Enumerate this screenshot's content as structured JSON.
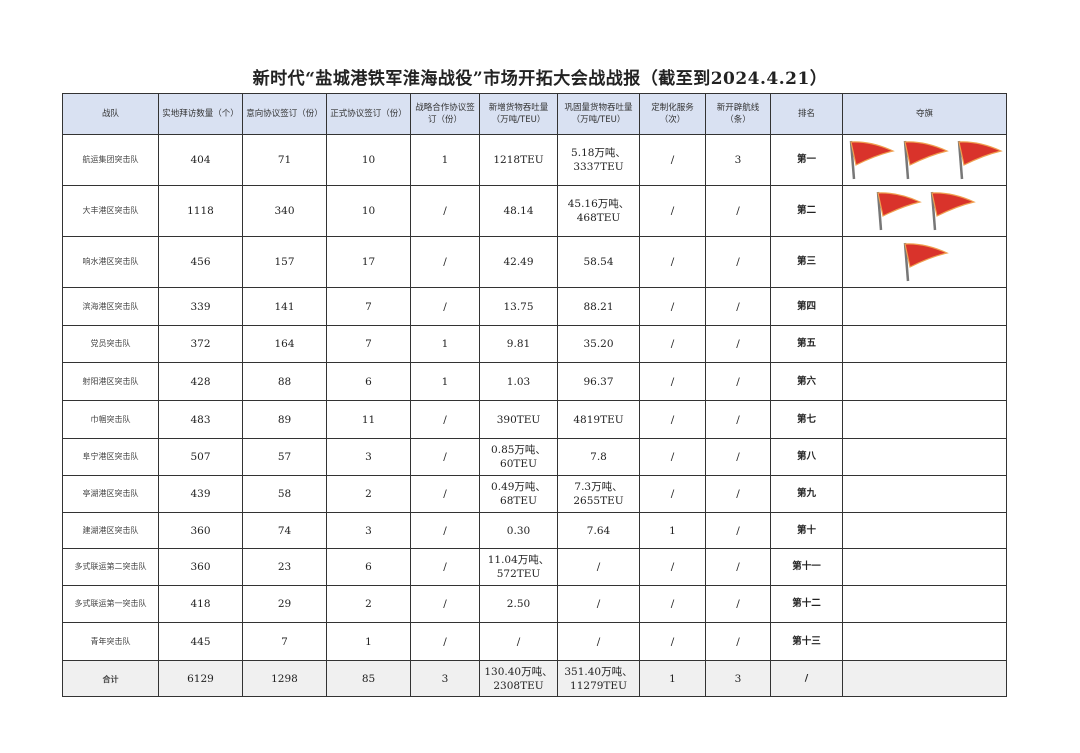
{
  "title": "新时代“盐城港铁军淮海战役”市场开拓大会战战报（截至到2024.4.21）",
  "headers": [
    "战队",
    "实地拜访数量（个）",
    "意向协议签订（份）",
    "正式协议签订（份）",
    "战略合作协议签订（份）",
    "新增货物吞吐量（万吨/TEU）",
    "巩固量货物吞吐量（万吨/TEU）",
    "定制化服务（次）",
    "新开辟航线（条）",
    "排名",
    "夺旗"
  ],
  "flag_color": "#d9332b",
  "rows": [
    {
      "team": "航运集团突击队",
      "visits": "404",
      "intent": "71",
      "formal": "10",
      "strategic": "1",
      "new_tp": "1218TEU",
      "cons_tp": "5.18万吨、3337TEU",
      "custom": "/",
      "routes": "3",
      "rank": "第一",
      "flags": 3
    },
    {
      "team": "大丰港区突击队",
      "visits": "1118",
      "intent": "340",
      "formal": "10",
      "strategic": "/",
      "new_tp": "48.14",
      "cons_tp": "45.16万吨、468TEU",
      "custom": "/",
      "routes": "/",
      "rank": "第二",
      "flags": 2
    },
    {
      "team": "响水港区突击队",
      "visits": "456",
      "intent": "157",
      "formal": "17",
      "strategic": "/",
      "new_tp": "42.49",
      "cons_tp": "58.54",
      "custom": "/",
      "routes": "/",
      "rank": "第三",
      "flags": 1
    },
    {
      "team": "滨海港区突击队",
      "visits": "339",
      "intent": "141",
      "formal": "7",
      "strategic": "/",
      "new_tp": "13.75",
      "cons_tp": "88.21",
      "custom": "/",
      "routes": "/",
      "rank": "第四",
      "flags": 0
    },
    {
      "team": "党员突击队",
      "visits": "372",
      "intent": "164",
      "formal": "7",
      "strategic": "1",
      "new_tp": "9.81",
      "cons_tp": "35.20",
      "custom": "/",
      "routes": "/",
      "rank": "第五",
      "flags": 0
    },
    {
      "team": "射阳港区突击队",
      "visits": "428",
      "intent": "88",
      "formal": "6",
      "strategic": "1",
      "new_tp": "1.03",
      "cons_tp": "96.37",
      "custom": "/",
      "routes": "/",
      "rank": "第六",
      "flags": 0
    },
    {
      "team": "巾帼突击队",
      "visits": "483",
      "intent": "89",
      "formal": "11",
      "strategic": "/",
      "new_tp": "390TEU",
      "cons_tp": "4819TEU",
      "custom": "/",
      "routes": "/",
      "rank": "第七",
      "flags": 0
    },
    {
      "team": "阜宁港区突击队",
      "visits": "507",
      "intent": "57",
      "formal": "3",
      "strategic": "/",
      "new_tp": "0.85万吨、60TEU",
      "cons_tp": "7.8",
      "custom": "/",
      "routes": "/",
      "rank": "第八",
      "flags": 0
    },
    {
      "team": "亭湖港区突击队",
      "visits": "439",
      "intent": "58",
      "formal": "2",
      "strategic": "/",
      "new_tp": "0.49万吨、68TEU",
      "cons_tp": "7.3万吨、2655TEU",
      "custom": "/",
      "routes": "/",
      "rank": "第九",
      "flags": 0
    },
    {
      "team": "建湖港区突击队",
      "visits": "360",
      "intent": "74",
      "formal": "3",
      "strategic": "/",
      "new_tp": "0.30",
      "cons_tp": "7.64",
      "custom": "1",
      "routes": "/",
      "rank": "第十",
      "flags": 0
    },
    {
      "team": "多式联运第二突击队",
      "visits": "360",
      "intent": "23",
      "formal": "6",
      "strategic": "/",
      "new_tp": "11.04万吨、572TEU",
      "cons_tp": "/",
      "custom": "/",
      "routes": "/",
      "rank": "第十一",
      "flags": 0
    },
    {
      "team": "多式联运第一突击队",
      "visits": "418",
      "intent": "29",
      "formal": "2",
      "strategic": "/",
      "new_tp": "2.50",
      "cons_tp": "/",
      "custom": "/",
      "routes": "/",
      "rank": "第十二",
      "flags": 0
    },
    {
      "team": "青年突击队",
      "visits": "445",
      "intent": "7",
      "formal": "1",
      "strategic": "/",
      "new_tp": "/",
      "cons_tp": "/",
      "custom": "/",
      "routes": "/",
      "rank": "第十三",
      "flags": 0
    }
  ],
  "total": {
    "team": "合计",
    "visits": "6129",
    "intent": "1298",
    "formal": "85",
    "strategic": "3",
    "new_tp": "130.40万吨、2308TEU",
    "cons_tp": "351.40万吨、11279TEU",
    "custom": "1",
    "routes": "3",
    "rank": "/"
  }
}
